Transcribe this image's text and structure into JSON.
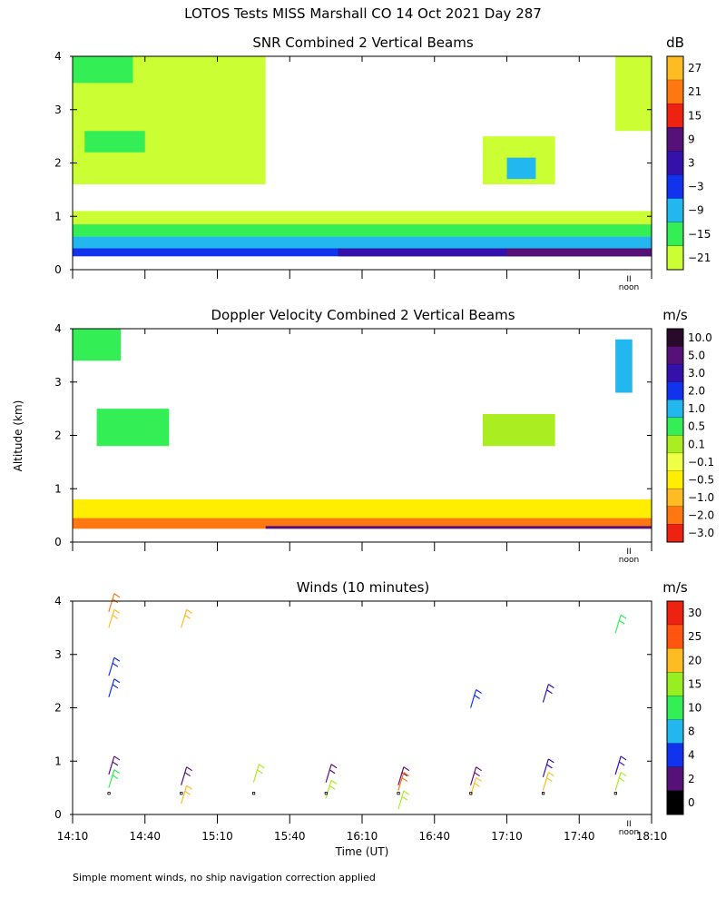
{
  "page_title": "LOTOS Tests MISS Marshall CO  14 Oct 2021 Day 287",
  "y_axis_label": "Altitude (km)",
  "x_axis_label": "Time (UT)",
  "x_ticks": [
    "14:10",
    "14:40",
    "15:10",
    "15:40",
    "16:10",
    "16:40",
    "17:10",
    "17:40",
    "18:10"
  ],
  "noon_label": "noon",
  "noon_mark": "II",
  "y_ticks": [
    "0",
    "1",
    "2",
    "3",
    "4"
  ],
  "footnote": "Simple moment winds, no ship navigation correction applied",
  "colors": {
    "lime": "#ccff33",
    "green": "#33ee55",
    "cyan": "#22b7ee",
    "blue": "#1133ee",
    "indigo": "#3311aa",
    "purple": "#551177",
    "red": "#ee2211",
    "orange": "#ff7711",
    "gold": "#ffbb22",
    "yellow": "#ffee00",
    "yellowgreen": "#aaee22",
    "black": "#000000"
  },
  "chart_data": [
    {
      "type": "heatmap",
      "title": "SNR Combined 2 Vertical Beams",
      "xlabel": "",
      "ylabel": "Altitude (km)",
      "xlim": [
        "14:10",
        "18:10"
      ],
      "ylim": [
        0,
        4
      ],
      "colorbar_unit": "dB",
      "colorbar_labels": [
        "27",
        "21",
        "15",
        "9",
        "3",
        "−3",
        "−9",
        "−15",
        "−21"
      ],
      "colorbar_colors": [
        "#ffbb22",
        "#ff7711",
        "#ee2211",
        "#551177",
        "#3311aa",
        "#1133ee",
        "#22b7ee",
        "#33ee55",
        "#ccff33"
      ],
      "regions": [
        {
          "t0": 0,
          "t1": 240,
          "h0": 0.25,
          "h1": 0.4,
          "color": "blue"
        },
        {
          "t0": 110,
          "t1": 240,
          "h0": 0.25,
          "h1": 0.5,
          "color": "indigo"
        },
        {
          "t0": 180,
          "t1": 240,
          "h0": 0.25,
          "h1": 0.5,
          "color": "purple"
        },
        {
          "t0": 0,
          "t1": 240,
          "h0": 0.4,
          "h1": 0.62,
          "color": "cyan"
        },
        {
          "t0": 0,
          "t1": 240,
          "h0": 0.62,
          "h1": 0.85,
          "color": "green"
        },
        {
          "t0": 0,
          "t1": 240,
          "h0": 0.85,
          "h1": 1.1,
          "color": "lime"
        },
        {
          "t0": 0,
          "t1": 80,
          "h0": 1.6,
          "h1": 4.0,
          "color": "lime"
        },
        {
          "t0": 5,
          "t1": 30,
          "h0": 2.2,
          "h1": 2.6,
          "color": "green"
        },
        {
          "t0": 0,
          "t1": 25,
          "h0": 3.5,
          "h1": 4.0,
          "color": "green"
        },
        {
          "t0": 170,
          "t1": 200,
          "h0": 1.6,
          "h1": 2.5,
          "color": "lime"
        },
        {
          "t0": 180,
          "t1": 192,
          "h0": 1.7,
          "h1": 2.1,
          "color": "cyan"
        },
        {
          "t0": 225,
          "t1": 240,
          "h0": 2.6,
          "h1": 4.0,
          "color": "lime"
        }
      ]
    },
    {
      "type": "heatmap",
      "title": "Doppler Velocity Combined 2 Vertical Beams",
      "xlabel": "",
      "ylabel": "Altitude (km)",
      "xlim": [
        "14:10",
        "18:10"
      ],
      "ylim": [
        0,
        4
      ],
      "colorbar_unit": "m/s",
      "colorbar_labels": [
        "10.0",
        "5.0",
        "3.0",
        "2.0",
        "1.0",
        "0.5",
        "0.1",
        "−0.1",
        "−0.5",
        "−1.0",
        "−2.0",
        "−3.0"
      ],
      "colorbar_colors": [
        "#2a0a2a",
        "#551177",
        "#3311aa",
        "#1133ee",
        "#22b7ee",
        "#33ee55",
        "#aaee22",
        "#eeff44",
        "#ffee00",
        "#ffbb22",
        "#ff7711",
        "#ee2211"
      ],
      "regions": [
        {
          "t0": 0,
          "t1": 240,
          "h0": 0.25,
          "h1": 0.45,
          "color": "orange"
        },
        {
          "t0": 0,
          "t1": 240,
          "h0": 0.45,
          "h1": 0.8,
          "color": "yellow"
        },
        {
          "t0": 80,
          "t1": 240,
          "h0": 0.25,
          "h1": 0.3,
          "color": "purple"
        },
        {
          "t0": 0,
          "t1": 20,
          "h0": 3.4,
          "h1": 4.0,
          "color": "green"
        },
        {
          "t0": 10,
          "t1": 40,
          "h0": 1.8,
          "h1": 2.5,
          "color": "green"
        },
        {
          "t0": 170,
          "t1": 200,
          "h0": 1.8,
          "h1": 2.4,
          "color": "yellowgreen"
        },
        {
          "t0": 225,
          "t1": 232,
          "h0": 2.8,
          "h1": 3.8,
          "color": "cyan"
        }
      ]
    },
    {
      "type": "scatter",
      "title": "Winds (10 minutes)",
      "xlabel": "Time (UT)",
      "ylabel": "Altitude (km)",
      "xlim": [
        "14:10",
        "18:10"
      ],
      "ylim": [
        0,
        4
      ],
      "colorbar_unit": "m/s",
      "colorbar_labels": [
        "30",
        "25",
        "20",
        "15",
        "10",
        "8",
        "4",
        "2",
        "0"
      ],
      "colorbar_colors": [
        "#ee2211",
        "#ff5511",
        "#ffbb22",
        "#99ee22",
        "#33ee55",
        "#22b7ee",
        "#1133ee",
        "#551177",
        "#000000"
      ],
      "profiles_time_minutes": [
        15,
        45,
        75,
        105,
        135,
        165,
        195,
        225
      ],
      "barbs": [
        {
          "t": 15,
          "h": 3.8,
          "color": "orange"
        },
        {
          "t": 15,
          "h": 3.5,
          "color": "gold"
        },
        {
          "t": 15,
          "h": 2.6,
          "color": "blue"
        },
        {
          "t": 15,
          "h": 2.2,
          "color": "blue"
        },
        {
          "t": 15,
          "h": 0.75,
          "color": "purple"
        },
        {
          "t": 15,
          "h": 0.5,
          "color": "green"
        },
        {
          "t": 45,
          "h": 3.5,
          "color": "gold"
        },
        {
          "t": 45,
          "h": 0.55,
          "color": "purple"
        },
        {
          "t": 45,
          "h": 0.2,
          "color": "gold"
        },
        {
          "t": 75,
          "h": 0.6,
          "color": "yellowgreen"
        },
        {
          "t": 105,
          "h": 0.6,
          "color": "purple"
        },
        {
          "t": 105,
          "h": 0.3,
          "color": "yellowgreen"
        },
        {
          "t": 135,
          "h": 0.55,
          "color": "purple"
        },
        {
          "t": 135,
          "h": 0.45,
          "color": "orange"
        },
        {
          "t": 135,
          "h": 0.1,
          "color": "yellowgreen"
        },
        {
          "t": 165,
          "h": 2.0,
          "color": "blue"
        },
        {
          "t": 165,
          "h": 0.55,
          "color": "purple"
        },
        {
          "t": 165,
          "h": 0.35,
          "color": "gold"
        },
        {
          "t": 195,
          "h": 2.1,
          "color": "indigo"
        },
        {
          "t": 195,
          "h": 0.7,
          "color": "indigo"
        },
        {
          "t": 195,
          "h": 0.45,
          "color": "gold"
        },
        {
          "t": 225,
          "h": 3.4,
          "color": "green"
        },
        {
          "t": 225,
          "h": 0.75,
          "color": "indigo"
        },
        {
          "t": 225,
          "h": 0.45,
          "color": "yellowgreen"
        }
      ]
    }
  ]
}
